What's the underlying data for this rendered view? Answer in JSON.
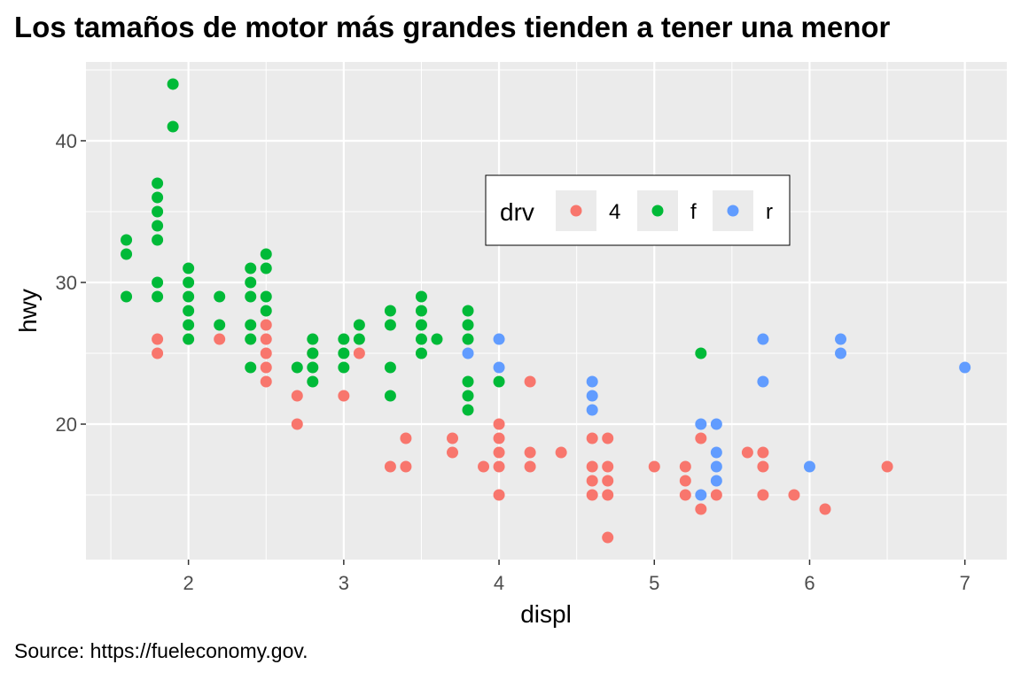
{
  "chart_data": {
    "type": "scatter",
    "title": "Los tamaños de motor más grandes tienden a tener una menor",
    "caption": "Source: https://fueleconomy.gov.",
    "xlabel": "displ",
    "ylabel": "hwy",
    "xlim": [
      1.34,
      7.27
    ],
    "ylim": [
      10.44,
      45.56
    ],
    "xticks": [
      2,
      3,
      4,
      5,
      6,
      7
    ],
    "yticks": [
      20,
      30,
      40
    ],
    "grid": true,
    "legend": {
      "title": "drv",
      "placement": "inside-top-center",
      "entries": [
        "4",
        "f",
        "r"
      ]
    },
    "series": [
      {
        "name": "4",
        "color": "#F8766D",
        "points": [
          [
            1.8,
            26
          ],
          [
            1.8,
            25
          ],
          [
            2.2,
            26
          ],
          [
            2.5,
            27
          ],
          [
            2.5,
            26
          ],
          [
            2.5,
            25
          ],
          [
            2.5,
            24
          ],
          [
            2.5,
            23
          ],
          [
            2.7,
            22
          ],
          [
            2.7,
            20
          ],
          [
            2.8,
            25
          ],
          [
            3.0,
            22
          ],
          [
            3.1,
            25
          ],
          [
            3.3,
            17
          ],
          [
            3.4,
            19
          ],
          [
            3.4,
            17
          ],
          [
            3.7,
            19
          ],
          [
            3.7,
            18
          ],
          [
            3.9,
            17
          ],
          [
            4.0,
            20
          ],
          [
            4.0,
            19
          ],
          [
            4.0,
            18
          ],
          [
            4.0,
            17
          ],
          [
            4.0,
            15
          ],
          [
            4.2,
            23
          ],
          [
            4.2,
            18
          ],
          [
            4.2,
            17
          ],
          [
            4.4,
            18
          ],
          [
            4.6,
            19
          ],
          [
            4.6,
            17
          ],
          [
            4.6,
            16
          ],
          [
            4.6,
            15
          ],
          [
            4.7,
            19
          ],
          [
            4.7,
            17
          ],
          [
            4.7,
            16
          ],
          [
            4.7,
            15
          ],
          [
            4.7,
            12
          ],
          [
            5.0,
            17
          ],
          [
            5.2,
            17
          ],
          [
            5.2,
            16
          ],
          [
            5.2,
            15
          ],
          [
            5.3,
            19
          ],
          [
            5.3,
            14
          ],
          [
            5.4,
            15
          ],
          [
            5.6,
            18
          ],
          [
            5.7,
            18
          ],
          [
            5.7,
            17
          ],
          [
            5.7,
            15
          ],
          [
            5.9,
            15
          ],
          [
            6.1,
            14
          ],
          [
            6.5,
            17
          ]
        ]
      },
      {
        "name": "f",
        "color": "#00BA38",
        "points": [
          [
            1.6,
            33
          ],
          [
            1.6,
            32
          ],
          [
            1.6,
            29
          ],
          [
            1.8,
            37
          ],
          [
            1.8,
            36
          ],
          [
            1.8,
            35
          ],
          [
            1.8,
            34
          ],
          [
            1.8,
            33
          ],
          [
            1.8,
            30
          ],
          [
            1.8,
            29
          ],
          [
            1.9,
            44
          ],
          [
            1.9,
            41
          ],
          [
            2.0,
            31
          ],
          [
            2.0,
            30
          ],
          [
            2.0,
            29
          ],
          [
            2.0,
            28
          ],
          [
            2.0,
            27
          ],
          [
            2.0,
            26
          ],
          [
            2.2,
            29
          ],
          [
            2.2,
            27
          ],
          [
            2.4,
            31
          ],
          [
            2.4,
            30
          ],
          [
            2.4,
            29
          ],
          [
            2.4,
            27
          ],
          [
            2.4,
            26
          ],
          [
            2.4,
            24
          ],
          [
            2.5,
            32
          ],
          [
            2.5,
            31
          ],
          [
            2.5,
            29
          ],
          [
            2.5,
            28
          ],
          [
            2.7,
            24
          ],
          [
            2.8,
            26
          ],
          [
            2.8,
            25
          ],
          [
            2.8,
            24
          ],
          [
            2.8,
            23
          ],
          [
            3.0,
            26
          ],
          [
            3.0,
            25
          ],
          [
            3.0,
            24
          ],
          [
            3.1,
            27
          ],
          [
            3.1,
            26
          ],
          [
            3.3,
            28
          ],
          [
            3.3,
            27
          ],
          [
            3.3,
            24
          ],
          [
            3.3,
            22
          ],
          [
            3.5,
            29
          ],
          [
            3.5,
            28
          ],
          [
            3.5,
            27
          ],
          [
            3.5,
            26
          ],
          [
            3.5,
            25
          ],
          [
            3.6,
            26
          ],
          [
            3.8,
            28
          ],
          [
            3.8,
            27
          ],
          [
            3.8,
            26
          ],
          [
            3.8,
            23
          ],
          [
            3.8,
            22
          ],
          [
            3.8,
            21
          ],
          [
            4.0,
            23
          ],
          [
            5.3,
            25
          ]
        ]
      },
      {
        "name": "r",
        "color": "#619CFF",
        "points": [
          [
            3.8,
            25
          ],
          [
            4.0,
            26
          ],
          [
            4.0,
            24
          ],
          [
            4.6,
            23
          ],
          [
            4.6,
            22
          ],
          [
            4.6,
            21
          ],
          [
            5.3,
            20
          ],
          [
            5.3,
            15
          ],
          [
            5.4,
            20
          ],
          [
            5.4,
            18
          ],
          [
            5.4,
            17
          ],
          [
            5.4,
            16
          ],
          [
            5.7,
            26
          ],
          [
            5.7,
            23
          ],
          [
            6.0,
            17
          ],
          [
            6.2,
            26
          ],
          [
            6.2,
            25
          ],
          [
            7.0,
            24
          ]
        ]
      }
    ]
  }
}
